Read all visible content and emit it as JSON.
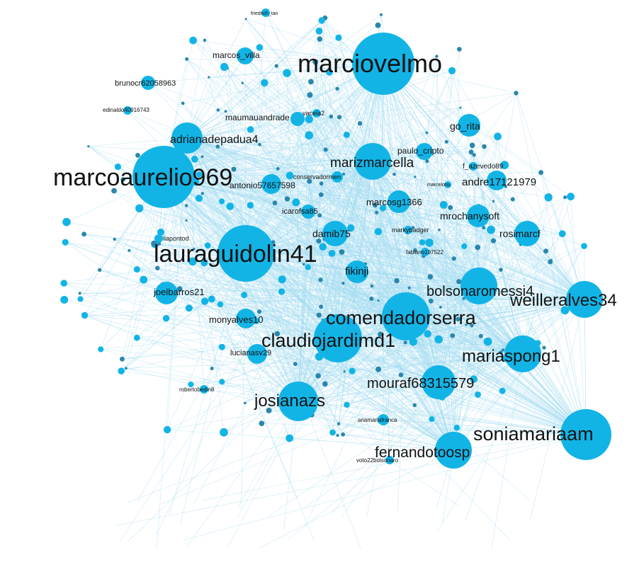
{
  "colors": {
    "node": "#12b4e6",
    "small_node": "#2a86ad",
    "edge": "#9fdaf0",
    "label": "#111111"
  },
  "graph": {
    "labeled_nodes": [
      {
        "id": "marciovelmo",
        "label": "marciovelmo"
      },
      {
        "id": "marcoaurelio969",
        "label": "marcoaurelio969"
      },
      {
        "id": "lauraguidolin41",
        "label": "lauraguidolin41"
      },
      {
        "id": "comendadorserra",
        "label": "comendadorserra"
      },
      {
        "id": "claudiojardimd1",
        "label": "claudiojardimd1"
      },
      {
        "id": "soniamariaam",
        "label": "soniamariaam"
      },
      {
        "id": "josianazs",
        "label": "josianazs"
      },
      {
        "id": "mariaspong1",
        "label": "mariaspong1"
      },
      {
        "id": "weilleralves34",
        "label": "weilleralves34"
      },
      {
        "id": "bolsonaromessi4",
        "label": "bolsonaromessi4"
      },
      {
        "id": "fernandotoosp",
        "label": "fernandotoosp"
      },
      {
        "id": "mouraf68315579",
        "label": "mouraf68315579"
      },
      {
        "id": "marizmarcella",
        "label": "marizmarcella"
      },
      {
        "id": "adrianadepadua4",
        "label": "adrianadepadua4"
      },
      {
        "id": "antonio57657598",
        "label": "antonio57657598"
      },
      {
        "id": "andre17121979",
        "label": "andre17121979"
      },
      {
        "id": "go_rita",
        "label": "go_rita"
      },
      {
        "id": "rosimarcf",
        "label": "rosimarcf"
      },
      {
        "id": "mrochanysoft",
        "label": "mrochanysoft"
      },
      {
        "id": "fikinji",
        "label": "fikinji"
      },
      {
        "id": "damib75",
        "label": "damib75"
      },
      {
        "id": "marcosg1366",
        "label": "marcosg1366"
      },
      {
        "id": "joelbarros21",
        "label": "joelbarros21"
      },
      {
        "id": "monyalves10",
        "label": "monyalves10"
      },
      {
        "id": "maumauandrade",
        "label": "maumauandrade"
      },
      {
        "id": "brunocr62058963",
        "label": "brunocr62058963"
      },
      {
        "id": "marcos_villa",
        "label": "marcos_villa"
      },
      {
        "id": "paulo_cripto",
        "label": "paulo_cripto"
      },
      {
        "id": "icarofsa85",
        "label": "icarofsa85"
      },
      {
        "id": "lucianasv29",
        "label": "lucianasv29"
      },
      {
        "id": "conservadormen",
        "label": "conservadormen"
      },
      {
        "id": "f_azevedo89",
        "label": "f_azevedo89"
      },
      {
        "id": "markybadger",
        "label": "markybadger"
      },
      {
        "id": "anamariafranca",
        "label": "anamariafranca"
      },
      {
        "id": "voto22bolsonaro",
        "label": "voto22bolsonaro"
      },
      {
        "id": "edinaldo40916743",
        "label": "edinaldo40916743"
      },
      {
        "id": "liapontod",
        "label": "liapontod"
      },
      {
        "id": "robertobedin8",
        "label": "robertobedin8"
      },
      {
        "id": "friedrich_tan",
        "label": "friedrich_tan"
      },
      {
        "id": "fabiano197522",
        "label": "fabiano197522"
      },
      {
        "id": "marcelonu",
        "label": "marcelonu"
      },
      {
        "id": "vacela2",
        "label": "vacela2"
      }
    ]
  }
}
